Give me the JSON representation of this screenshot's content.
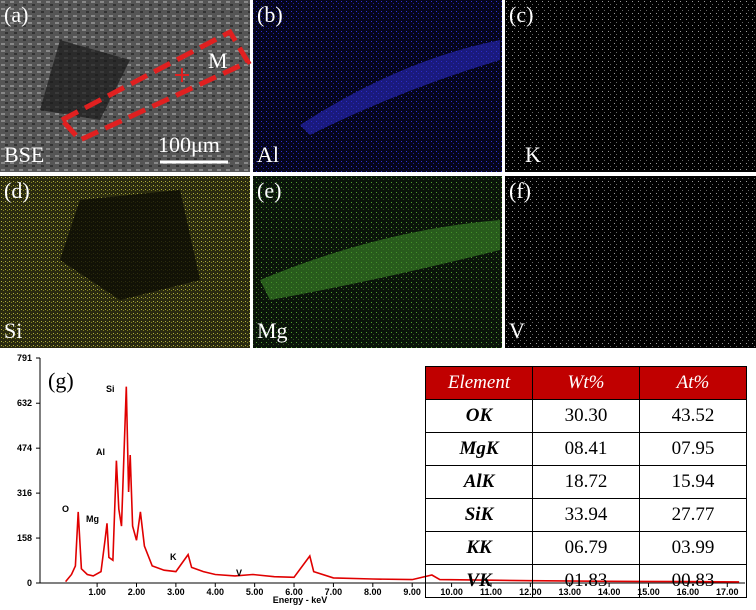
{
  "panels": [
    {
      "label": "(a)",
      "element": "BSE"
    },
    {
      "label": "(b)",
      "element": "Al"
    },
    {
      "label": "(c)",
      "element": "K"
    },
    {
      "label": "(d)",
      "element": "Si"
    },
    {
      "label": "(e)",
      "element": "Mg"
    },
    {
      "label": "(f)",
      "element": "V"
    }
  ],
  "scale_bar": "100μm",
  "marker": "M",
  "chart_data": {
    "type": "line",
    "label": "(g)",
    "x_label": "Energy - keV",
    "x": [
      0.2,
      0.35,
      0.45,
      0.52,
      0.6,
      0.75,
      0.9,
      1.1,
      1.2,
      1.25,
      1.3,
      1.4,
      1.49,
      1.55,
      1.62,
      1.74,
      1.8,
      1.84,
      1.9,
      2.0,
      2.1,
      2.2,
      2.4,
      2.7,
      3.0,
      3.31,
      3.4,
      3.7,
      4.0,
      4.5,
      4.95,
      5.5,
      6.0,
      6.4,
      6.5,
      7.0,
      8.0,
      9.0,
      9.5,
      9.7,
      11.0,
      12.0,
      14.0,
      16.0,
      17.3
    ],
    "series": [
      {
        "color": "#e00000",
        "values": [
          5,
          30,
          60,
          250,
          50,
          30,
          25,
          40,
          150,
          210,
          90,
          80,
          430,
          260,
          200,
          690,
          320,
          450,
          200,
          150,
          250,
          130,
          60,
          45,
          40,
          100,
          55,
          40,
          30,
          25,
          30,
          22,
          20,
          95,
          40,
          18,
          14,
          12,
          28,
          12,
          10,
          8,
          6,
          5,
          4
        ]
      }
    ],
    "annotations": [
      "O",
      "Mg",
      "Al",
      "Si",
      "K",
      "V"
    ],
    "xlim": [
      -0.45,
      17.45
    ],
    "ylim": [
      0,
      791
    ],
    "yticks": [
      0,
      158,
      316,
      474,
      632,
      791
    ],
    "xticks": [
      {
        "value": 1,
        "label": "1.00"
      },
      {
        "value": 2,
        "label": "2.00"
      },
      {
        "value": 3,
        "label": "3.00"
      },
      {
        "value": 4,
        "label": "4.00"
      },
      {
        "value": 5,
        "label": "5.00"
      },
      {
        "value": 6,
        "label": "6.00"
      },
      {
        "value": 7,
        "label": "7.00"
      },
      {
        "value": 8,
        "label": "8.00"
      },
      {
        "value": 9,
        "label": "9.00"
      },
      {
        "value": 10,
        "label": "10.00"
      },
      {
        "value": 11,
        "label": "11.00"
      },
      {
        "value": 12,
        "label": "12.00"
      },
      {
        "value": 13,
        "label": "13.00"
      },
      {
        "value": 14,
        "label": "14.00"
      },
      {
        "value": 15,
        "label": "15.00"
      },
      {
        "value": 16,
        "label": "16.00"
      },
      {
        "value": 17,
        "label": "17.00"
      }
    ]
  },
  "table": {
    "header": [
      "Element",
      "Wt%",
      "At%"
    ],
    "rows": [
      [
        "OK",
        "30.30",
        "43.52"
      ],
      [
        "MgK",
        "08.41",
        "07.95"
      ],
      [
        "AlK",
        "18.72",
        "15.94"
      ],
      [
        "SiK",
        "33.94",
        "27.77"
      ],
      [
        "KK",
        "06.79",
        "03.99"
      ],
      [
        "VK",
        "01.83",
        "00.83"
      ]
    ]
  }
}
